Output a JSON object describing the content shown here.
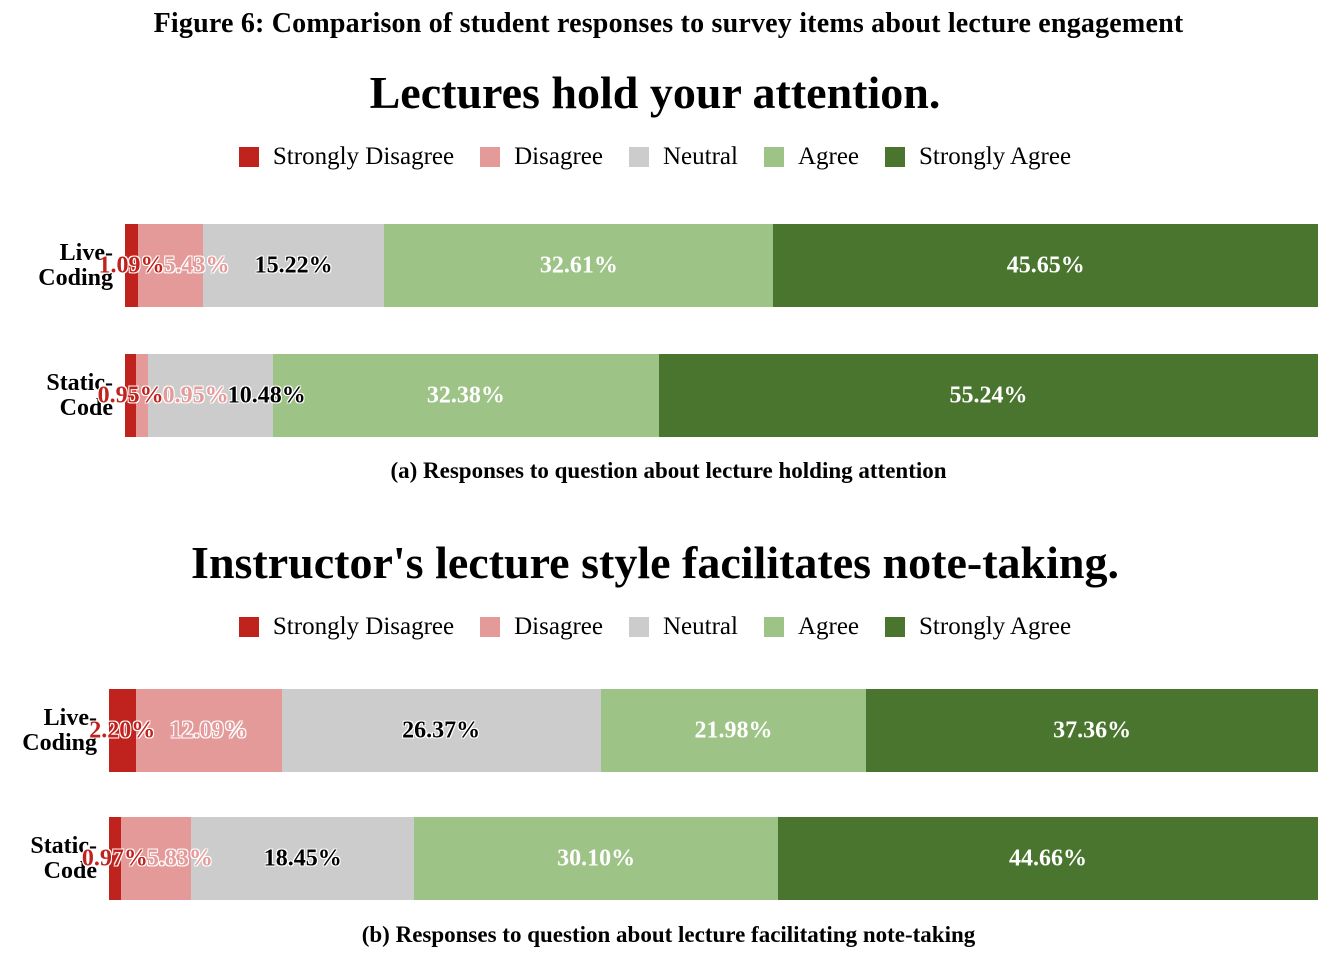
{
  "figure_caption": "Figure 6: Comparison of student responses to survey items about lecture engagement",
  "colors": {
    "strongly_disagree": "#c0221d",
    "disagree": "#e59a9a",
    "neutral": "#cccccc",
    "agree": "#9ec386",
    "strongly_agree": "#49752e"
  },
  "chart_data": [
    {
      "type": "bar",
      "orientation": "horizontal",
      "stacked": true,
      "title": "Lectures hold your attention.",
      "caption": "(a) Responses to question about lecture holding attention",
      "legend": [
        "Strongly Disagree",
        "Disagree",
        "Neutral",
        "Agree",
        "Strongly Agree"
      ],
      "legend_placement": "top",
      "categories": [
        "Live-\nCoding",
        "Static-\nCode"
      ],
      "series": [
        {
          "name": "Strongly Disagree",
          "values": [
            1.09,
            0.95
          ],
          "labels": [
            "1.09%",
            "0.95%"
          ]
        },
        {
          "name": "Disagree",
          "values": [
            5.43,
            0.95
          ],
          "labels": [
            "5.43%",
            "0.95%"
          ]
        },
        {
          "name": "Neutral",
          "values": [
            15.22,
            10.48
          ],
          "labels": [
            "15.22%",
            "10.48%"
          ]
        },
        {
          "name": "Agree",
          "values": [
            32.61,
            32.38
          ],
          "labels": [
            "32.61%",
            "32.38%"
          ]
        },
        {
          "name": "Strongly Agree",
          "values": [
            45.65,
            55.24
          ],
          "labels": [
            "45.65%",
            "55.24%"
          ]
        }
      ]
    },
    {
      "type": "bar",
      "orientation": "horizontal",
      "stacked": true,
      "title": "Instructor's lecture style facilitates note-taking.",
      "caption": "(b) Responses to question about lecture facilitating note-taking",
      "legend": [
        "Strongly Disagree",
        "Disagree",
        "Neutral",
        "Agree",
        "Strongly Agree"
      ],
      "legend_placement": "top",
      "categories": [
        "Live-\nCoding",
        "Static-\nCode"
      ],
      "series": [
        {
          "name": "Strongly Disagree",
          "values": [
            2.2,
            0.97
          ],
          "labels": [
            "2.20%",
            "0.97%"
          ]
        },
        {
          "name": "Disagree",
          "values": [
            12.09,
            5.83
          ],
          "labels": [
            "12.09%",
            "5.83%"
          ]
        },
        {
          "name": "Neutral",
          "values": [
            26.37,
            18.45
          ],
          "labels": [
            "26.37%",
            "18.45%"
          ]
        },
        {
          "name": "Agree",
          "values": [
            21.98,
            30.1
          ],
          "labels": [
            "21.98%",
            "30.10%"
          ]
        },
        {
          "name": "Strongly Agree",
          "values": [
            37.36,
            44.66
          ],
          "labels": [
            "37.36%",
            "44.66%"
          ]
        }
      ]
    }
  ]
}
